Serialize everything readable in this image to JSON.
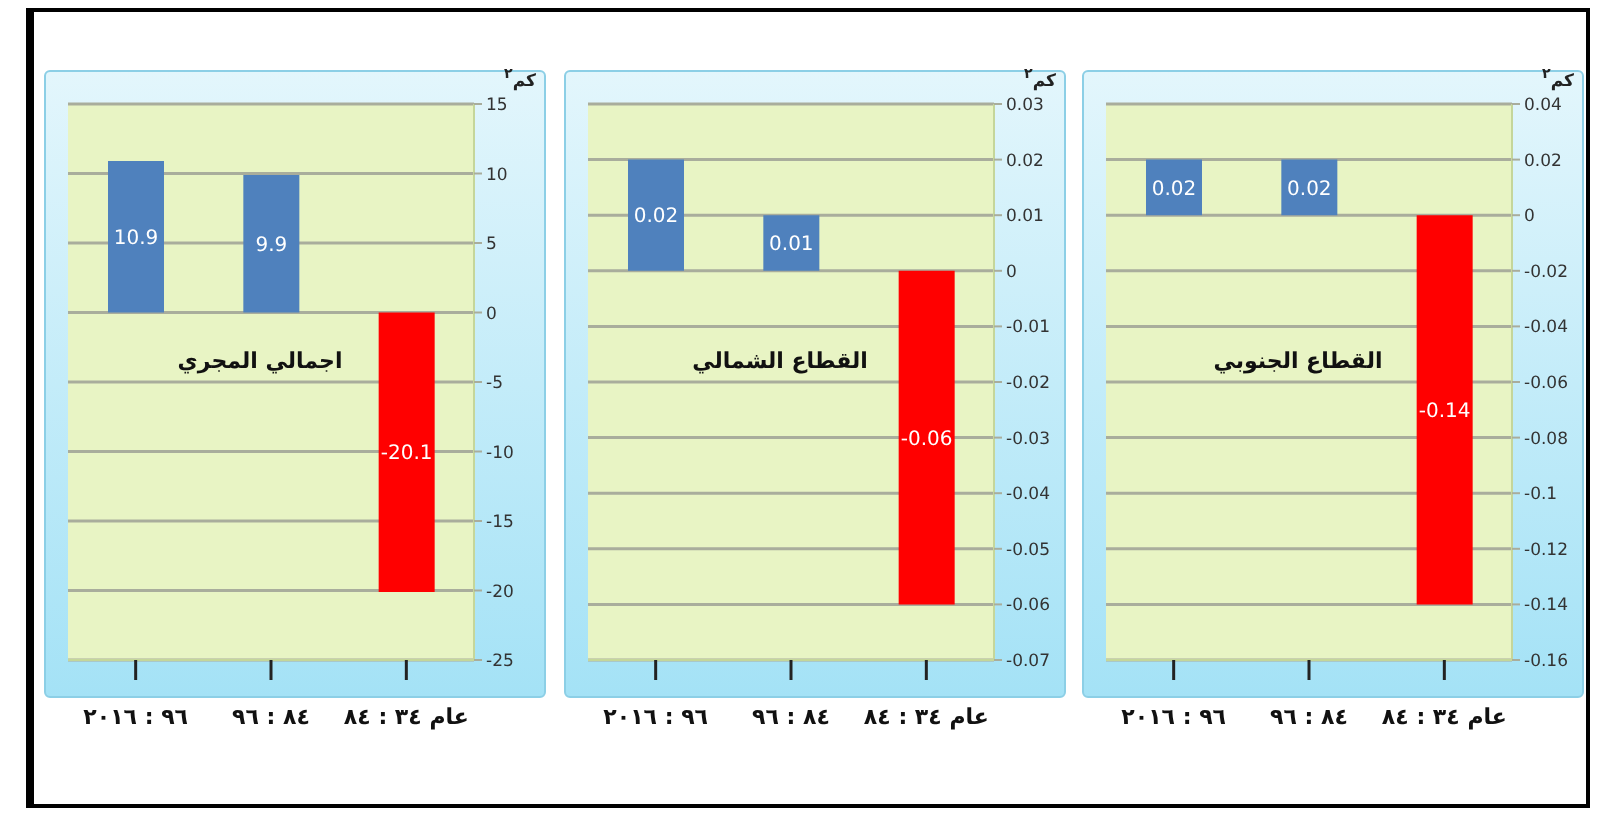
{
  "chart_data": [
    {
      "type": "bar",
      "title": "اجمالي المجري",
      "ylabel": "كم$^{٢}$",
      "categories": [
        "٩٦ : ٢٠١٦",
        "٨٤ : ٩٦",
        "عام ٣٤ : ٨٤"
      ],
      "values": [
        10.9,
        9.9,
        -20.1
      ],
      "colors": [
        "#4f81bd",
        "#4f81bd",
        "#ff0000"
      ],
      "ylim": [
        -25,
        15
      ],
      "yticks": [
        -25,
        -20,
        -15,
        -10,
        -5,
        0,
        5,
        10,
        15
      ],
      "grid": "y",
      "data_labels": true
    },
    {
      "type": "bar",
      "title": "القطاع الشمالي",
      "ylabel": "كم$^{٢}$",
      "categories": [
        "٩٦ : ٢٠١٦",
        "٨٤ : ٩٦",
        "عام ٣٤ : ٨٤"
      ],
      "values": [
        0.02,
        0.01,
        -0.06
      ],
      "colors": [
        "#4f81bd",
        "#4f81bd",
        "#ff0000"
      ],
      "ylim": [
        -0.07,
        0.03
      ],
      "yticks": [
        -0.07,
        -0.06,
        -0.05,
        -0.04,
        -0.03,
        -0.02,
        -0.01,
        0,
        0.01,
        0.02,
        0.03
      ],
      "grid": "y",
      "data_labels": true
    },
    {
      "type": "bar",
      "title": "القطاع الجنوبي",
      "ylabel": "كم$^{٢}$",
      "categories": [
        "٩٦ : ٢٠١٦",
        "٨٤ : ٩٦",
        "عام ٣٤ : ٨٤"
      ],
      "values": [
        0.02,
        0.02,
        -0.14
      ],
      "colors": [
        "#4f81bd",
        "#4f81bd",
        "#ff0000"
      ],
      "ylim": [
        -0.16,
        0.04
      ],
      "yticks": [
        -0.16,
        -0.14,
        -0.12,
        -0.1,
        -0.08,
        -0.06,
        -0.04,
        -0.02,
        0,
        0.02,
        0.04
      ],
      "grid": "y",
      "data_labels": true
    }
  ]
}
